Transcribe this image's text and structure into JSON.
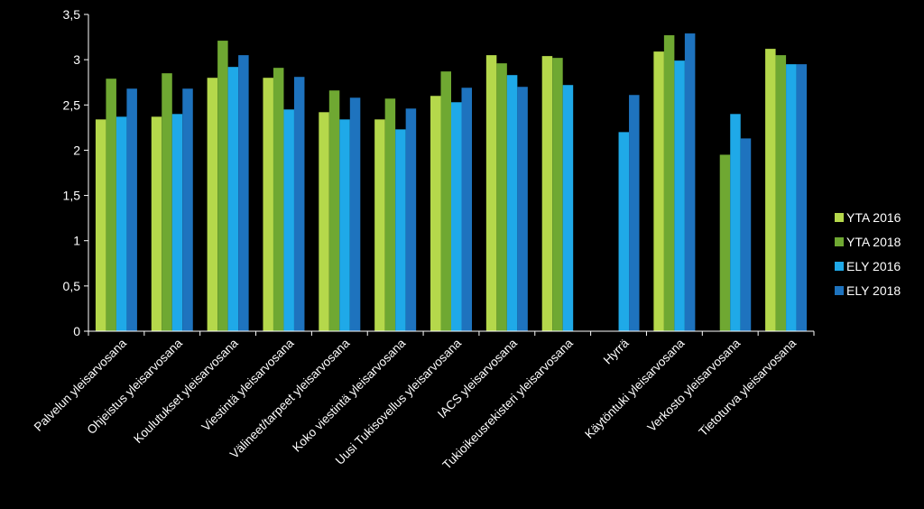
{
  "chart_data": {
    "type": "bar",
    "categories": [
      "Palvelun yleisarvosana",
      "Ohjeistus yleisarvosana",
      "Koulutukset yleisarvosana",
      "Viestintä yleisarvosana",
      "Välineet/tarpeet yleisarvosana",
      "Koko viestintä yleisarvosana",
      "Uusi Tukisovellus yleisarvosana",
      "IACS yleisarvosana",
      "Tukioikeusrekisteri yleisarvosana",
      "Hyrrä",
      "Käytöntuki yleisarvosana",
      "Verkosto yleisarvosana",
      "Tietoturva yleisarvosana"
    ],
    "series": [
      {
        "name": "YTA 2016",
        "color": "#b5d84b",
        "values": [
          2.34,
          2.37,
          2.8,
          2.8,
          2.42,
          2.34,
          2.6,
          3.05,
          3.04,
          null,
          3.09,
          null,
          3.12
        ]
      },
      {
        "name": "YTA 2018",
        "color": "#6fa832",
        "values": [
          2.79,
          2.85,
          3.21,
          2.91,
          2.66,
          2.57,
          2.87,
          2.96,
          3.02,
          null,
          3.27,
          1.95,
          3.05
        ]
      },
      {
        "name": "ELY 2016",
        "color": "#1fa9e8",
        "values": [
          2.37,
          2.4,
          2.92,
          2.45,
          2.34,
          2.23,
          2.53,
          2.83,
          2.72,
          2.2,
          2.99,
          2.4,
          2.95
        ]
      },
      {
        "name": "ELY 2018",
        "color": "#1e73be",
        "values": [
          2.68,
          2.68,
          3.05,
          2.81,
          2.58,
          2.46,
          2.69,
          2.7,
          null,
          2.61,
          3.29,
          2.13,
          2.95
        ]
      }
    ],
    "yticks": [
      "0",
      "0,5",
      "1",
      "1,5",
      "2",
      "2,5",
      "3",
      "3,5"
    ],
    "ylim": [
      0,
      3.5
    ],
    "legend_position": "right",
    "grid": false
  }
}
